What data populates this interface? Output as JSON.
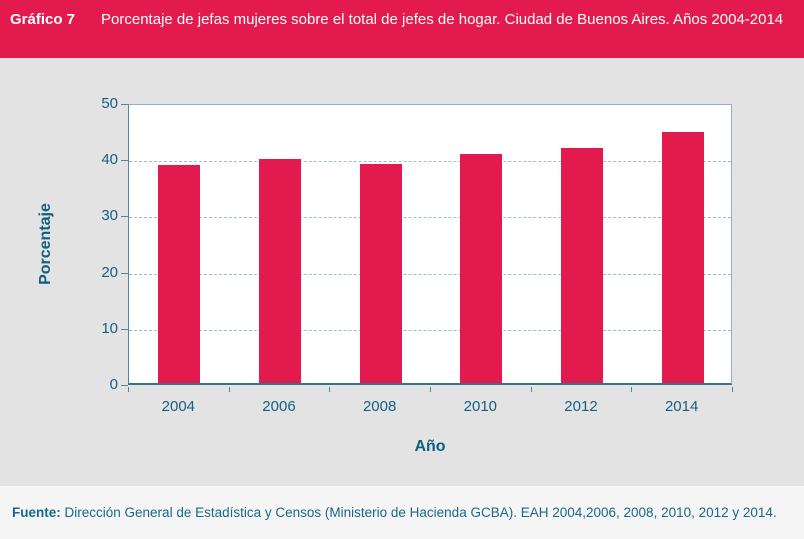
{
  "header": {
    "label": "Gráfico 7",
    "title": "Porcentaje de jefas mujeres sobre el total de jefes de hogar. Ciudad de Buenos Aires. Años 2004-2014"
  },
  "chart_data": {
    "type": "bar",
    "title": "Porcentaje de jefas mujeres sobre el total de jefes de hogar. Ciudad de Buenos Aires. Años 2004-2014",
    "categories": [
      "2004",
      "2006",
      "2008",
      "2010",
      "2012",
      "2014"
    ],
    "values": [
      38.8,
      39.8,
      39.0,
      40.8,
      41.8,
      44.6
    ],
    "xlabel": "Año",
    "ylabel": "Porcentaje",
    "ylim": [
      0,
      50
    ],
    "ytick_step": 10,
    "yticks": [
      0,
      10,
      20,
      30,
      40,
      50
    ],
    "grid": "horizontal-dashed",
    "legend": "none",
    "bar_color": "#e21a4e"
  },
  "footer": {
    "source_label": "Fuente:",
    "source_text": "Dirección General de Estadística y Censos (Ministerio de Hacienda GCBA). EAH 2004,2006, 2008, 2010, 2012 y 2014."
  },
  "colors": {
    "accent_pink": "#e21a4e",
    "text_teal": "#145f82",
    "chart_background": "#e3e3e3",
    "footer_background": "#f5f5f5",
    "plot_background": "#ffffff",
    "gridline": "#9dbecb",
    "axis": "#4e86a0"
  }
}
